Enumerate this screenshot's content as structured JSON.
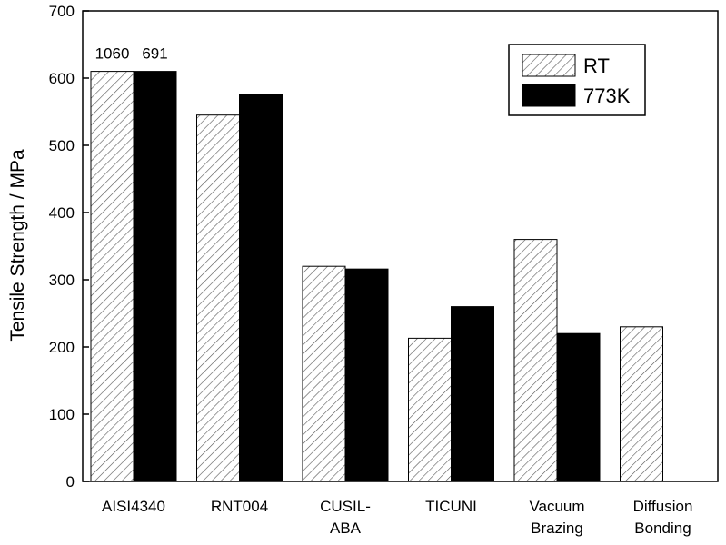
{
  "chart_data": {
    "type": "bar",
    "title": "",
    "xlabel": "",
    "ylabel": "Tensile Strength / MPa",
    "ylim": [
      0,
      700
    ],
    "yticks": [
      0,
      100,
      200,
      300,
      400,
      500,
      600,
      700
    ],
    "grid": false,
    "legend_position": "top-right",
    "categories": [
      [
        "AISI4340"
      ],
      [
        "RNT004"
      ],
      [
        "CUSIL-",
        "ABA"
      ],
      [
        "TICUNI"
      ],
      [
        "Vacuum",
        "Brazing"
      ],
      [
        "Diffusion",
        "Bonding"
      ]
    ],
    "series": [
      {
        "name": "RT",
        "pattern": "hatched",
        "values": [
          610,
          545,
          320,
          213,
          360,
          230
        ]
      },
      {
        "name": "773K",
        "pattern": "solid",
        "color": "#000000",
        "values": [
          610,
          575,
          316,
          260,
          220,
          null
        ]
      }
    ],
    "annotations": [
      {
        "text": "1060",
        "category": 0,
        "series": 0
      },
      {
        "text": "691",
        "category": 0,
        "series": 1
      }
    ]
  }
}
